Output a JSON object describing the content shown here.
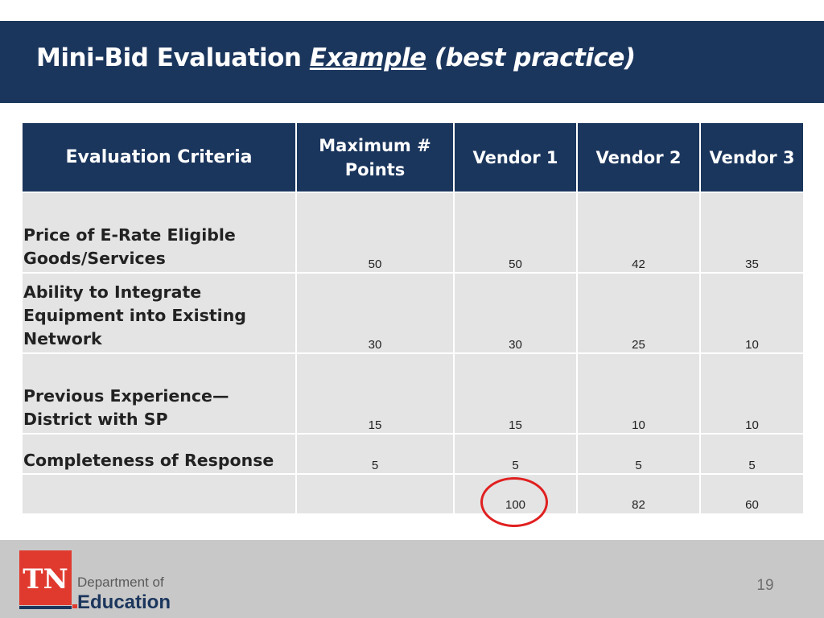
{
  "slide": {
    "title": {
      "lead": "Mini-Bid Evaluation ",
      "example": "Example",
      "rest": " (best practice)"
    },
    "page_number": "19"
  },
  "table": {
    "headers": {
      "criteria": "Evaluation Criteria",
      "max_line1": "Maximum #",
      "max_line2": "Points",
      "vendor1": "Vendor 1",
      "vendor2": "Vendor 2",
      "vendor3": "Vendor 3"
    },
    "rows": [
      {
        "criteria_line1": "Price of E-Rate Eligible",
        "criteria_line2": "Goods/Services",
        "max": "50",
        "v1": "50",
        "v2": "42",
        "v3": "35"
      },
      {
        "criteria_line1": "Ability to Integrate",
        "criteria_line2": "Equipment into Existing",
        "criteria_line3": "Network",
        "max": "30",
        "v1": "30",
        "v2": "25",
        "v3": "10"
      },
      {
        "criteria_line1": "Previous Experience—",
        "criteria_line2": "District with SP",
        "max": "15",
        "v1": "15",
        "v2": "10",
        "v3": "10"
      },
      {
        "criteria_line1": "Completeness of Response",
        "max": "5",
        "v1": "5",
        "v2": "5",
        "v3": "5"
      }
    ],
    "totals": {
      "v1": "100",
      "v2": "82",
      "v3": "60"
    }
  },
  "logo": {
    "state": "TN",
    "dept_line1": "Department of",
    "dept_line2": "Education"
  },
  "colors": {
    "navy": "#1b365d",
    "logo_red": "#e03a2f",
    "circle_red": "#e02020",
    "cell_gray": "#e4e4e4"
  }
}
